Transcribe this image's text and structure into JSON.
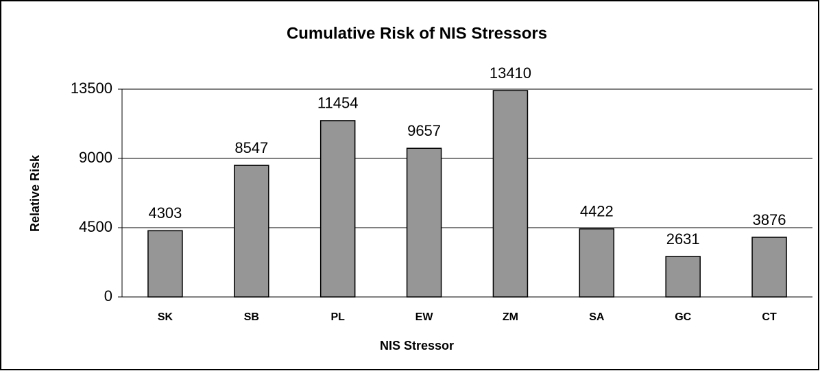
{
  "chart_data": {
    "type": "bar",
    "title": "Cumulative Risk of NIS Stressors",
    "xlabel": "NIS Stressor",
    "ylabel": "Relative Risk",
    "categories": [
      "SK",
      "SB",
      "PL",
      "EW",
      "ZM",
      "SA",
      "GC",
      "CT"
    ],
    "values": [
      4303,
      8547,
      11454,
      9657,
      13410,
      4422,
      2631,
      3876
    ],
    "color": "#969696",
    "ylim": [
      0,
      13500
    ],
    "yticks": [
      0,
      4500,
      9000,
      13500
    ],
    "grid": true
  }
}
